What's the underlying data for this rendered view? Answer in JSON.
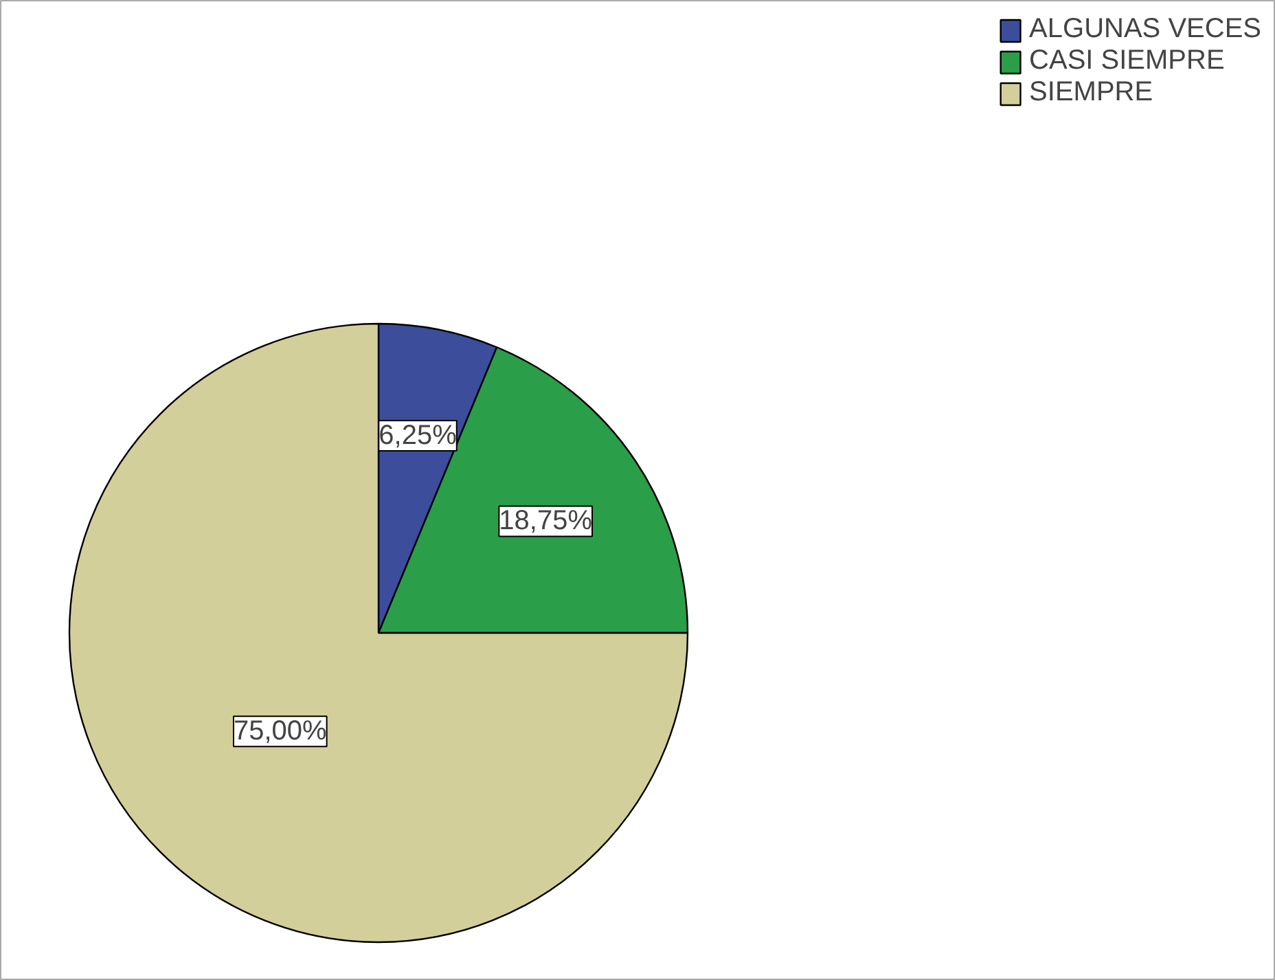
{
  "chart_data": {
    "type": "pie",
    "categories": [
      "ALGUNAS VECES",
      "CASI SIEMPRE",
      "SIEMPRE"
    ],
    "values": [
      6.25,
      18.75,
      75
    ],
    "colors": [
      "#3b4d9b",
      "#2a9e48",
      "#d3cf9b"
    ],
    "value_labels": [
      "6,25%",
      "18,75%",
      "75,00%"
    ],
    "legend": "top right"
  }
}
